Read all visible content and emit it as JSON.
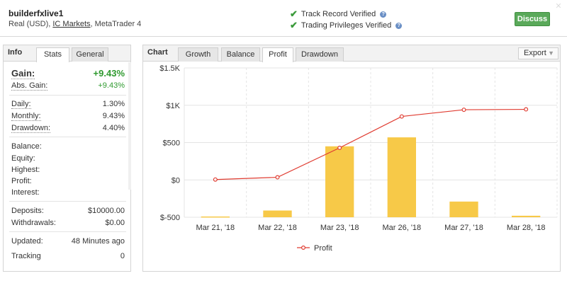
{
  "header": {
    "account_name": "builderfxlive1",
    "account_type": "Real (USD),",
    "broker": "IC Markets",
    "platform": ", MetaTrader 4",
    "track_record": "Track Record Verified",
    "trading_privileges": "Trading Privileges Verified",
    "discuss_label": "Discuss",
    "check_icon": "check-icon",
    "help_icon": "question-icon"
  },
  "left_panel": {
    "title": "Info",
    "tabs": [
      "Stats",
      "General"
    ],
    "gain_label": "Gain:",
    "gain_value": "+9.43%",
    "abs_gain_label": "Abs. Gain:",
    "abs_gain_value": "+9.43%",
    "daily_label": "Daily:",
    "daily_value": "1.30%",
    "monthly_label": "Monthly:",
    "monthly_value": "9.43%",
    "drawdown_label": "Drawdown:",
    "drawdown_value": "4.40%",
    "balance_label": "Balance:",
    "equity_label": "Equity:",
    "highest_label": "Highest:",
    "profit_label": "Profit:",
    "interest_label": "Interest:",
    "deposits_label": "Deposits:",
    "deposits_value": "$10000.00",
    "withdrawals_label": "Withdrawals:",
    "withdrawals_value": "$0.00",
    "updated_label": "Updated:",
    "updated_value": "48 Minutes ago",
    "tracking_label": "Tracking",
    "tracking_value": "0"
  },
  "chart_panel": {
    "title": "Chart",
    "tabs": [
      "Growth",
      "Balance",
      "Profit",
      "Drawdown"
    ],
    "active_tab": "Profit",
    "export_label": "Export"
  },
  "colors": {
    "bar": "#f7c948",
    "line": "#e03c31",
    "green": "#2f9a2f",
    "button": "#5aa95a"
  },
  "chart_data": {
    "type": "bar",
    "categories": [
      "Mar 21, '18",
      "Mar 22, '18",
      "Mar 23, '18",
      "Mar 26, '18",
      "Mar 27, '18",
      "Mar 28, '18"
    ],
    "ylim": [
      -500,
      1500
    ],
    "yticks": [
      -500,
      0,
      500,
      1000,
      1500
    ],
    "ytick_labels": [
      "$-500",
      "$0",
      "$500",
      "$1K",
      "$1.5K"
    ],
    "series": [
      {
        "kind": "bar",
        "values": [
          -490,
          -410,
          450,
          570,
          -290,
          -480
        ]
      },
      {
        "kind": "line",
        "name": "Profit",
        "values": [
          5,
          35,
          430,
          850,
          940,
          945
        ]
      }
    ],
    "legend": "bottom-center",
    "grid": true
  }
}
